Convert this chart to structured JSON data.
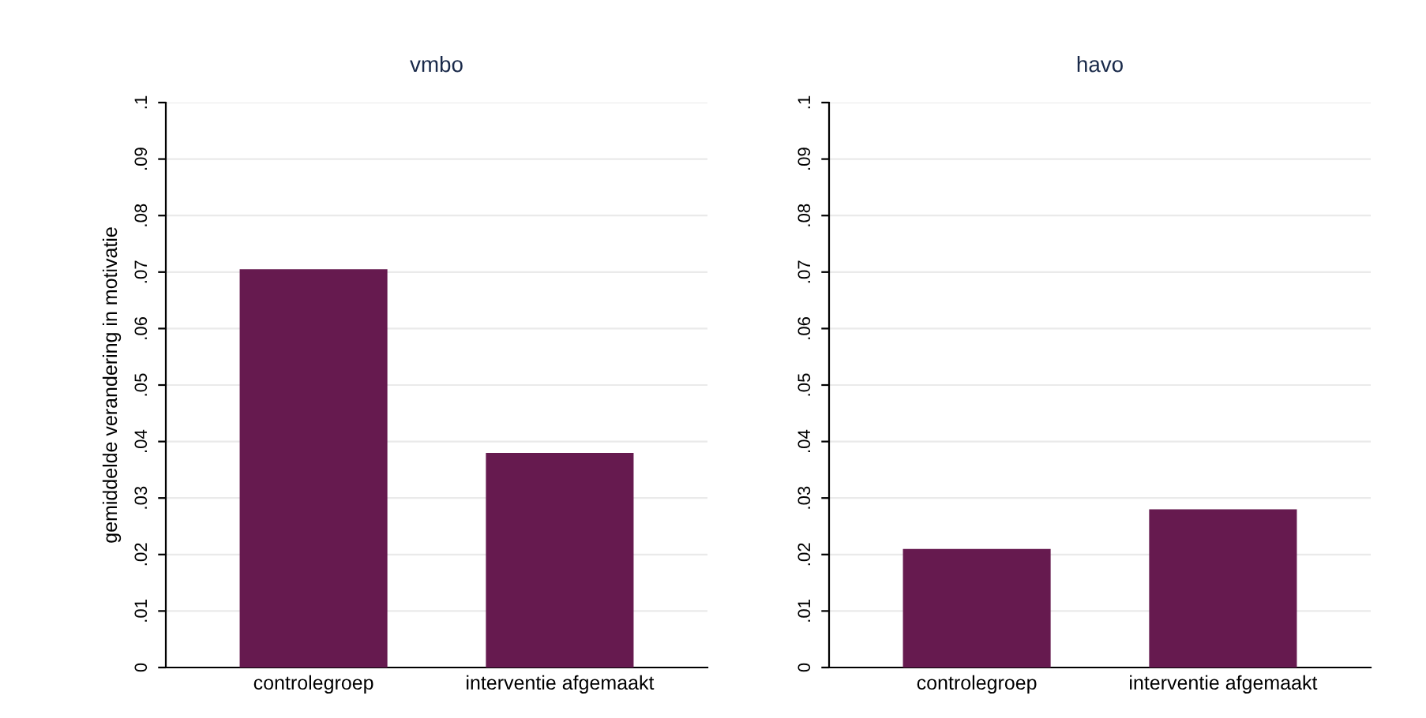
{
  "chart_data": [
    {
      "type": "bar",
      "title": "vmbo",
      "ylabel": "gemiddelde verandering in motivatie",
      "categories": [
        "controlegroep",
        "interventie afgemaakt"
      ],
      "values": [
        0.0705,
        0.038
      ],
      "color": "#661a4f",
      "ylim": [
        0,
        0.1
      ],
      "yticks": [
        0,
        {
          "value": 0.01,
          "label": ".01"
        },
        {
          "value": 0.02,
          "label": ".02"
        },
        {
          "value": 0.03,
          "label": ".03"
        },
        {
          "value": 0.04,
          "label": ".04"
        },
        {
          "value": 0.05,
          "label": ".05"
        },
        {
          "value": 0.06,
          "label": ".06"
        },
        {
          "value": 0.07,
          "label": ".07"
        },
        {
          "value": 0.08,
          "label": ".08"
        },
        {
          "value": 0.09,
          "label": ".09"
        },
        {
          "value": 0.1,
          "label": ".1"
        }
      ],
      "grid": "y"
    },
    {
      "type": "bar",
      "title": "havo",
      "categories": [
        "controlegroep",
        "interventie afgemaakt"
      ],
      "values": [
        0.021,
        0.028
      ],
      "color": "#661a4f",
      "ylim": [
        0,
        0.1
      ],
      "yticks": [
        0,
        {
          "value": 0.01,
          "label": ".01"
        },
        {
          "value": 0.02,
          "label": ".02"
        },
        {
          "value": 0.03,
          "label": ".03"
        },
        {
          "value": 0.04,
          "label": ".04"
        },
        {
          "value": 0.05,
          "label": ".05"
        },
        {
          "value": 0.06,
          "label": ".06"
        },
        {
          "value": 0.07,
          "label": ".07"
        },
        {
          "value": 0.08,
          "label": ".08"
        },
        {
          "value": 0.09,
          "label": ".09"
        },
        {
          "value": 0.1,
          "label": ".1"
        }
      ],
      "grid": "y"
    }
  ]
}
